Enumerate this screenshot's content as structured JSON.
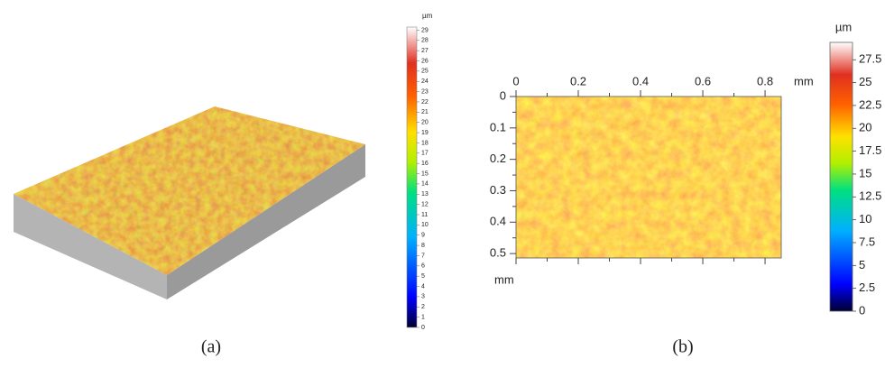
{
  "panels": [
    {
      "label": "(a)",
      "colorbar": {
        "unit": "µm",
        "ticks": [
          0,
          1,
          2,
          3,
          4,
          5,
          6,
          7,
          8,
          9,
          10,
          11,
          12,
          13,
          14,
          15,
          16,
          17,
          18,
          19,
          20,
          21,
          22,
          23,
          24,
          25,
          26,
          27,
          28,
          29
        ],
        "clim": [
          0,
          29.3
        ]
      }
    },
    {
      "label": "(b)",
      "x_axis": {
        "ticks": [
          0,
          0.2,
          0.4,
          0.6,
          0.8
        ],
        "unit": "mm",
        "lim": [
          0,
          0.852
        ]
      },
      "y_axis": {
        "ticks": [
          0,
          0.1,
          0.2,
          0.3,
          0.4,
          0.5
        ],
        "unit": "mm",
        "lim": [
          0,
          0.514
        ]
      },
      "colorbar": {
        "unit": "µm",
        "ticks": [
          0,
          2.5,
          5,
          7.5,
          10,
          12.5,
          15,
          17.5,
          20,
          22.5,
          25,
          27.5
        ],
        "clim": [
          0,
          29.4
        ]
      }
    }
  ]
}
